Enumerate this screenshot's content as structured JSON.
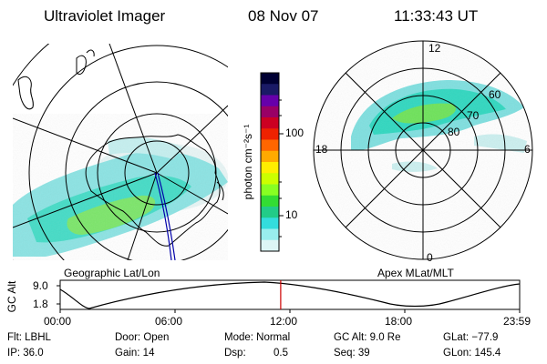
{
  "header": {
    "instrument": "Ultraviolet Imager",
    "date": "08 Nov 07",
    "time": "11:33:43 UT"
  },
  "geo_panel": {
    "caption": "Geographic Lat/Lon"
  },
  "apex_panel": {
    "caption": "Apex MLat/MLT",
    "mlt_labels": [
      "12",
      "18",
      "6",
      "0"
    ],
    "mlat_labels": [
      "60",
      "70",
      "80"
    ]
  },
  "colorbar": {
    "unit_label": "photon cm⁻²s⁻¹",
    "ticks": [
      {
        "label": "100",
        "value": 100
      },
      {
        "label": "10",
        "value": 10
      }
    ],
    "colors": [
      "#000033",
      "#1a1a66",
      "#6600aa",
      "#990066",
      "#cc0022",
      "#ee2200",
      "#ff6600",
      "#ffaa00",
      "#ffee00",
      "#ccff00",
      "#88ff22",
      "#33dd33",
      "#22cc88",
      "#33dddd",
      "#99eeee",
      "#ddf6f6"
    ]
  },
  "altitude_plot": {
    "ylabel": "GC Alt",
    "y_ticks": [
      "9.0",
      "1.8"
    ],
    "x_ticks": [
      "00:00",
      "06:00",
      "12:00",
      "18:00",
      "23:59"
    ],
    "current_time_fraction": 0.48
  },
  "info": {
    "flt": "Flt: LBHL",
    "ip": "IP: 36.0",
    "door": "Door: Open",
    "gain": "Gain: 14",
    "mode": "Mode: Normal",
    "dsp_label": "Dsp:",
    "dsp_value": "0.5",
    "gc_alt": "GC Alt: 9.0 Re",
    "seq": "Seq: 39",
    "glat": "GLat: −77.9",
    "glon": "GLon: 145.4"
  }
}
